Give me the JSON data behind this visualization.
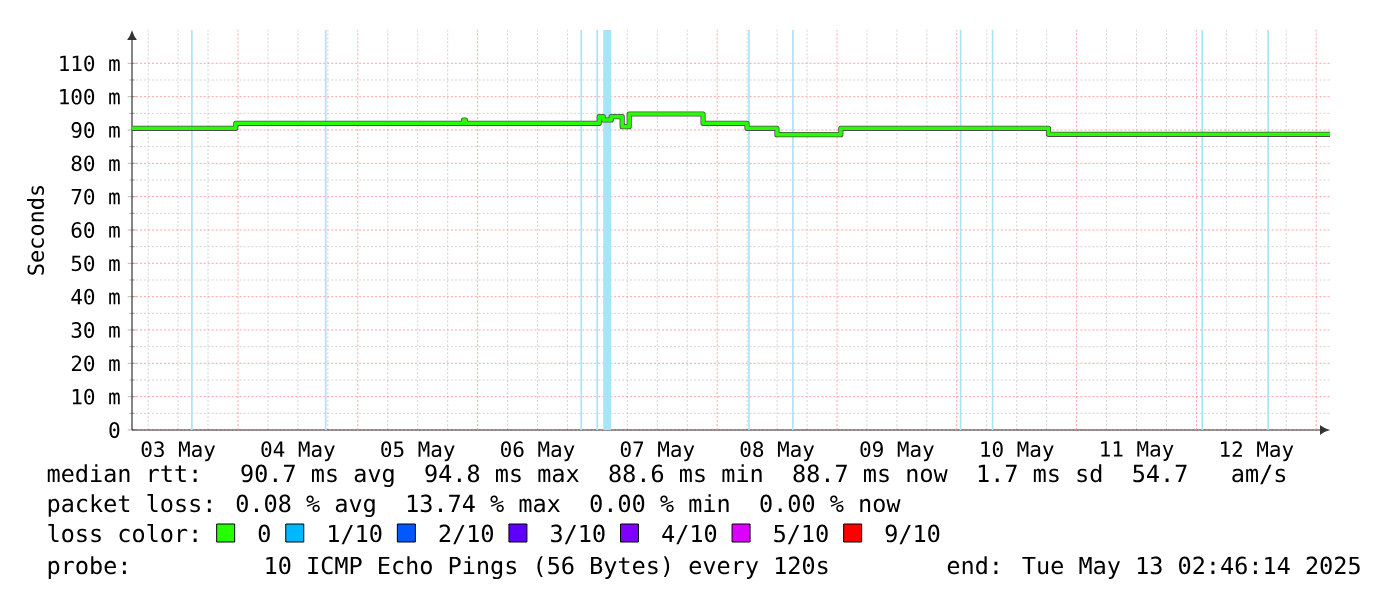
{
  "chart_data": {
    "type": "step",
    "ylabel": "Seconds",
    "legend_title": "loss color:",
    "legend": "bottom",
    "grid": true,
    "marker": "none",
    "line_style": "solid",
    "xlim": [
      "2025-05-03T02:46",
      "2025-05-13T02:46"
    ],
    "xticks": [
      {
        "value": "2025-05-03T12:00",
        "label": "03 May"
      },
      {
        "value": "2025-05-04T12:00",
        "label": "04 May"
      },
      {
        "value": "2025-05-05T12:00",
        "label": "05 May"
      },
      {
        "value": "2025-05-06T12:00",
        "label": "06 May"
      },
      {
        "value": "2025-05-07T12:00",
        "label": "07 May"
      },
      {
        "value": "2025-05-08T12:00",
        "label": "08 May"
      },
      {
        "value": "2025-05-09T12:00",
        "label": "09 May"
      },
      {
        "value": "2025-05-10T12:00",
        "label": "10 May"
      },
      {
        "value": "2025-05-11T12:00",
        "label": "11 May"
      },
      {
        "value": "2025-05-12T12:00",
        "label": "12 May"
      }
    ],
    "ylim": [
      0,
      120
    ],
    "yticks": [
      0,
      {
        "value": 10,
        "label": "10 m"
      },
      {
        "value": 20,
        "label": "20 m"
      },
      {
        "value": 30,
        "label": "30 m"
      },
      {
        "value": 40,
        "label": "40 m"
      },
      {
        "value": 50,
        "label": "50 m"
      },
      {
        "value": 60,
        "label": "60 m"
      },
      {
        "value": 70,
        "label": "70 m"
      },
      {
        "value": 80,
        "label": "80 m"
      },
      {
        "value": 90,
        "label": "90 m"
      },
      {
        "value": 100,
        "label": "100 m"
      },
      {
        "value": 110,
        "label": "110 m"
      }
    ],
    "series": [
      {
        "name": "0",
        "color": "#26ff00",
        "x": [
          "2025-05-03T02:46",
          "2025-05-03T23:34",
          "2025-05-05T21:10",
          "2025-05-05T21:34",
          "2025-05-07T00:22",
          "2025-05-07T01:10",
          "2025-05-07T02:46",
          "2025-05-07T04:58",
          "2025-05-07T06:22",
          "2025-05-07T21:10",
          "2025-05-08T05:58",
          "2025-05-08T11:58",
          "2025-05-09T00:46",
          "2025-05-10T18:22",
          "2025-05-13T02:46"
        ],
        "values": [
          90.5,
          92,
          93,
          92,
          94,
          93,
          94,
          91,
          94.8,
          92,
          90.5,
          88.6,
          90.5,
          88.7,
          88.7
        ]
      },
      {
        "name": "1/10",
        "color": "#00b8ff"
      },
      {
        "name": "2/10",
        "color": "#0059ff"
      },
      {
        "name": "3/10",
        "color": "#5e00ff"
      },
      {
        "name": "4/10",
        "color": "#7e00ff"
      },
      {
        "name": "5/10",
        "color": "#dd00ff"
      },
      {
        "name": "9/10",
        "color": "#ff0000"
      }
    ],
    "bands": [
      {
        "axis": "x",
        "from": "2025-05-03T14:36",
        "to": "2025-05-03T14:56",
        "color": "#a8e4f8"
      },
      {
        "axis": "x",
        "from": "2025-05-04T17:24",
        "to": "2025-05-04T17:44",
        "color": "#a8e4f8"
      },
      {
        "axis": "x",
        "from": "2025-05-06T20:36",
        "to": "2025-05-06T20:56",
        "color": "#a8e4f8"
      },
      {
        "axis": "x",
        "from": "2025-05-06T23:48",
        "to": "2025-05-07T00:08",
        "color": "#a8e4f8"
      },
      {
        "axis": "x",
        "from": "2025-05-07T01:10",
        "to": "2025-05-07T02:46",
        "color": "#a8e4f8"
      },
      {
        "axis": "x",
        "from": "2025-05-08T06:12",
        "to": "2025-05-08T06:32",
        "color": "#a8e4f8"
      },
      {
        "axis": "x",
        "from": "2025-05-08T15:00",
        "to": "2025-05-08T15:20",
        "color": "#a8e4f8"
      },
      {
        "axis": "x",
        "from": "2025-05-10T00:36",
        "to": "2025-05-10T00:56",
        "color": "#a8e4f8"
      },
      {
        "axis": "x",
        "from": "2025-05-10T07:00",
        "to": "2025-05-10T07:20",
        "color": "#a8e4f8"
      },
      {
        "axis": "x",
        "from": "2025-05-12T01:00",
        "to": "2025-05-12T01:20",
        "color": "#a8e4f8"
      },
      {
        "axis": "x",
        "from": "2025-05-12T14:12",
        "to": "2025-05-12T14:32",
        "color": "#a8e4f8"
      }
    ],
    "annotations": [
      "median rtt:  90.7 ms avg  94.8 ms max  88.6 ms min  88.7 ms now  1.7 ms sd  54.7   am/s",
      "packet loss: 0.08 % avg  13.74 % max  0.00 % min  0.00 % now",
      "probe:       10 ICMP Echo Pings (56 Bytes) every 120s",
      "end: Tue May 13 02:46:14 2025"
    ]
  }
}
